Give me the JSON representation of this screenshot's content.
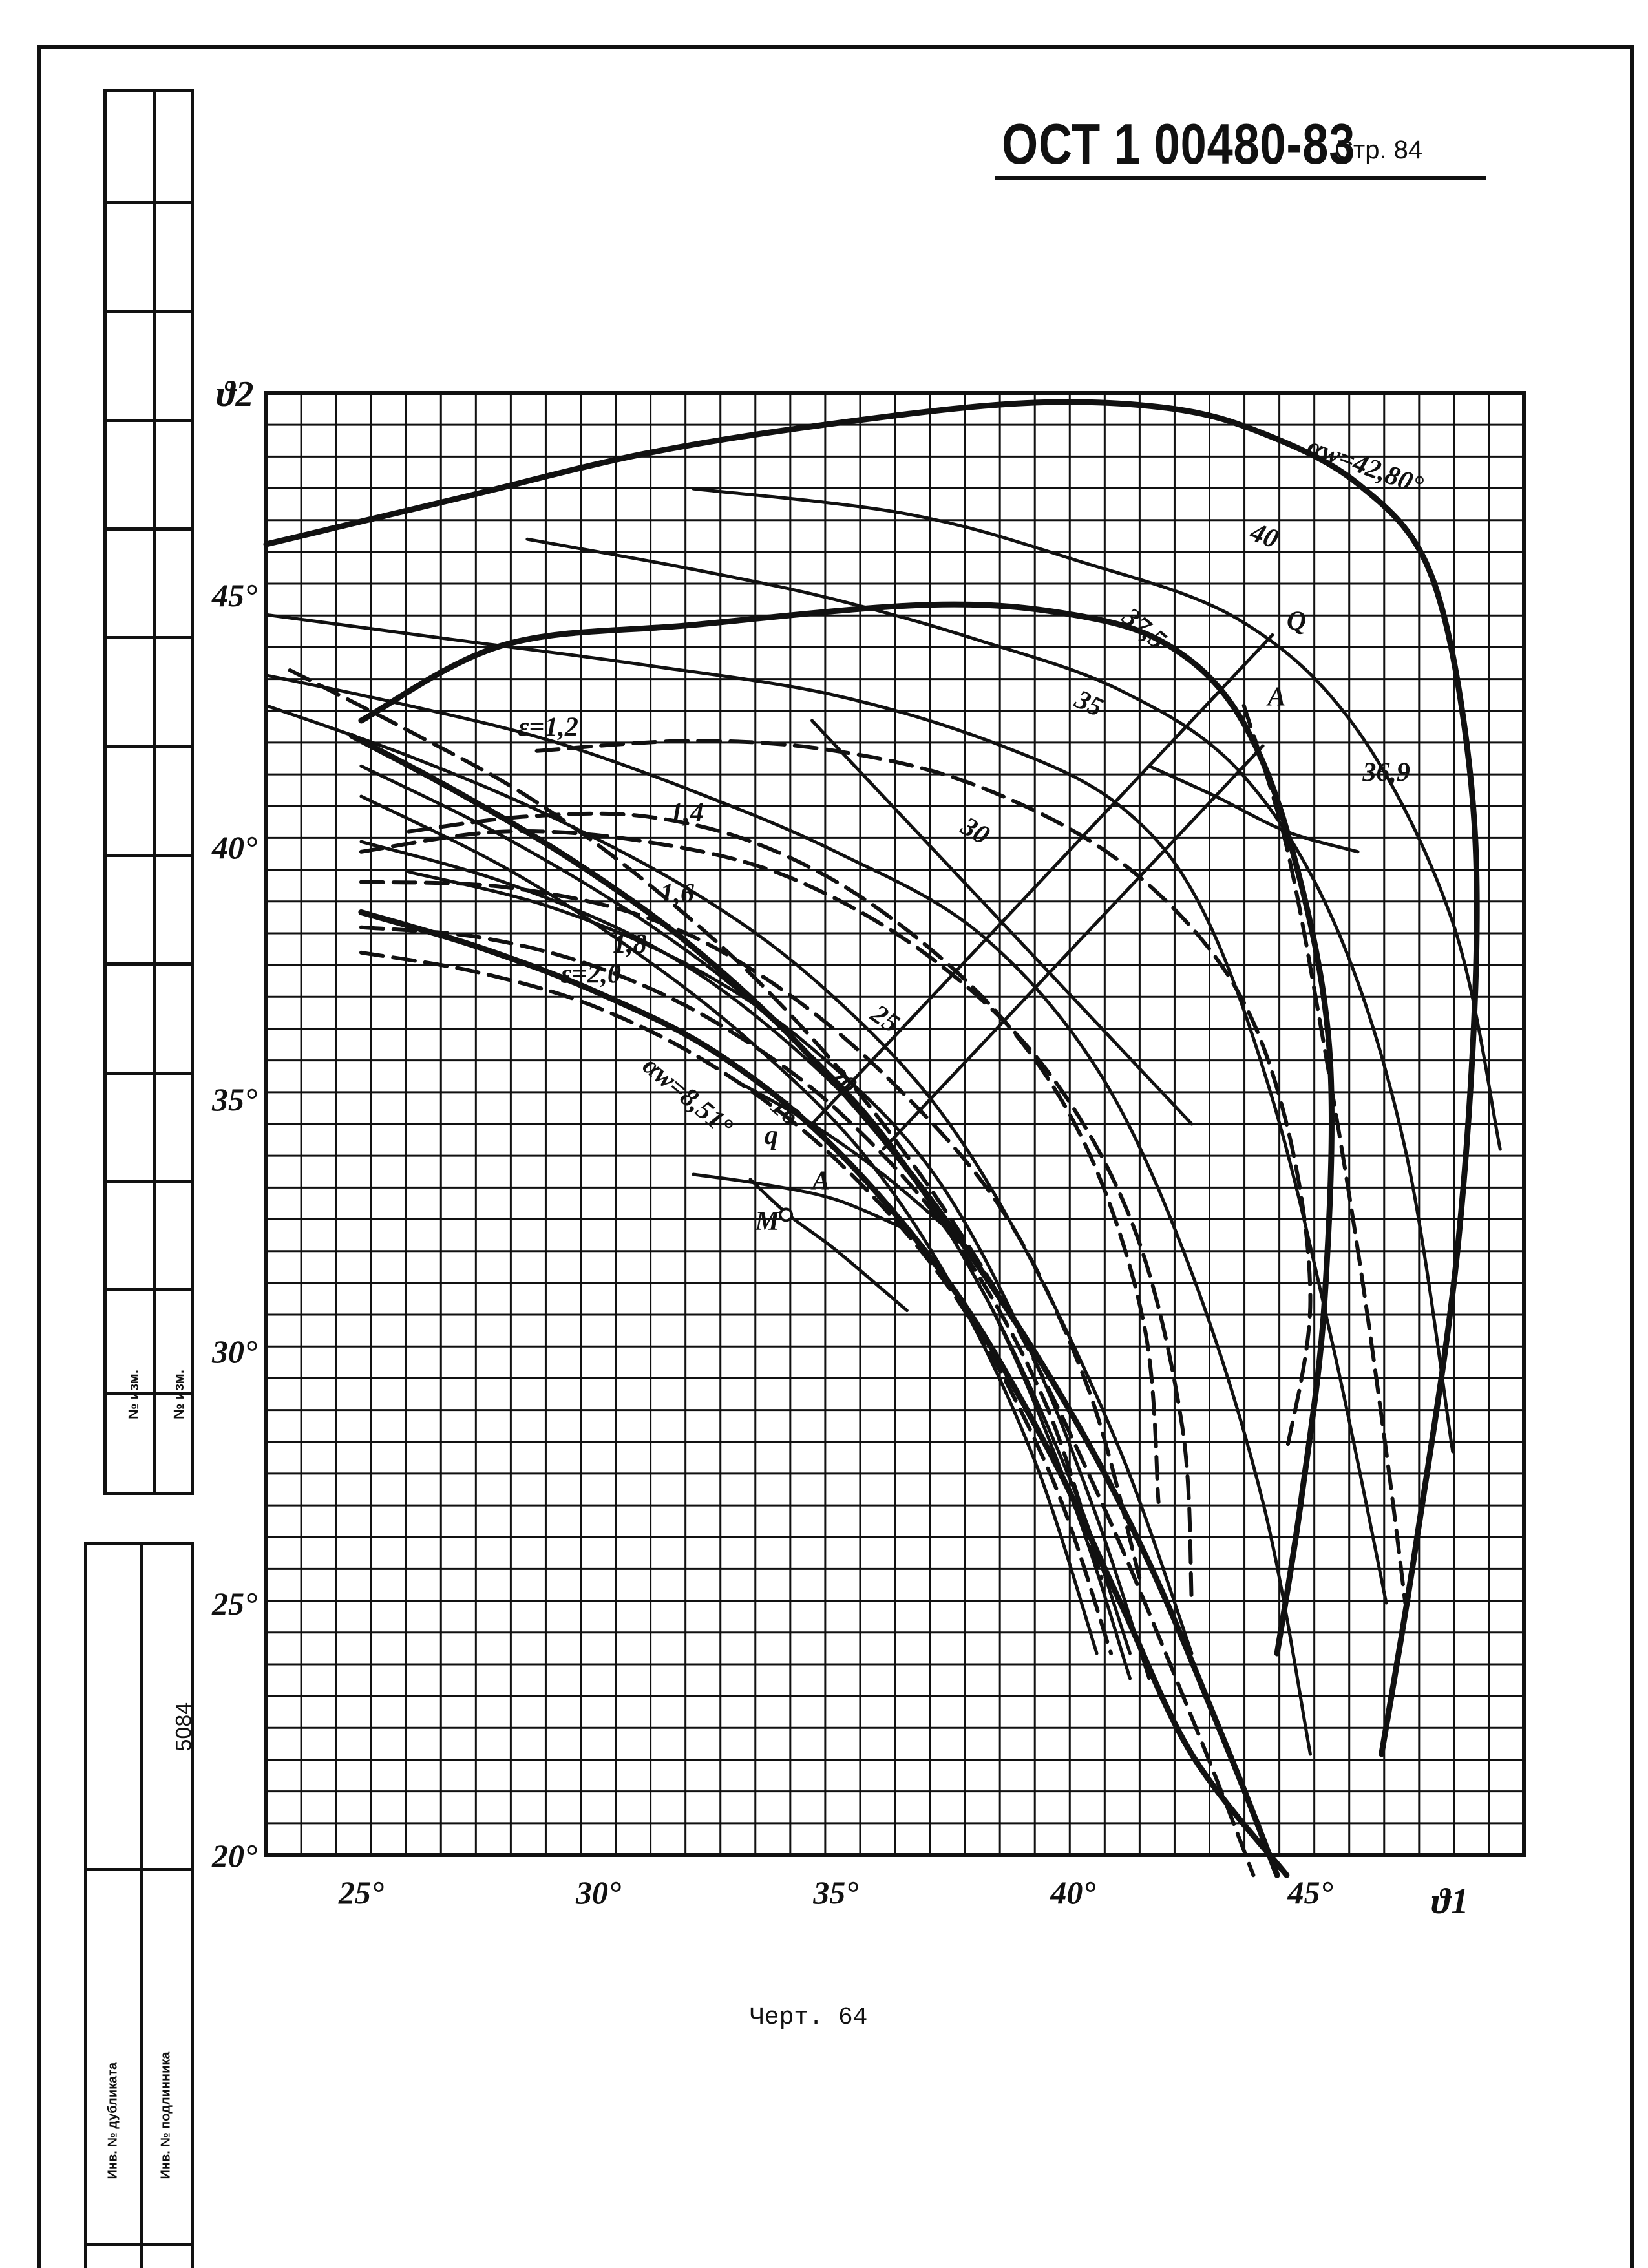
{
  "header": {
    "doc_number": "ОСТ 1 00480-83",
    "page_label": "Стр. 84"
  },
  "caption": "Черт. 64",
  "side_block": {
    "inventory_label_1": "№ изм.",
    "inventory_label_2": "№ изм.",
    "inventory_number": "5084",
    "original_label": "Инв. № дубликата",
    "copy_label": "Инв. № подлинника"
  },
  "chart_data": {
    "type": "line",
    "title": "",
    "xlabel": "ϑ1",
    "ylabel": "ϑ2",
    "xlim": [
      23,
      49.5
    ],
    "ylim": [
      20,
      49
    ],
    "x_ticks": [
      {
        "value": 25,
        "label": "25°"
      },
      {
        "value": 30,
        "label": "30°"
      },
      {
        "value": 35,
        "label": "35°"
      },
      {
        "value": 40,
        "label": "40°"
      },
      {
        "value": 45,
        "label": "45°"
      }
    ],
    "y_ticks": [
      {
        "value": 20,
        "label": "20°"
      },
      {
        "value": 25,
        "label": "25°"
      },
      {
        "value": 30,
        "label": "30°"
      },
      {
        "value": 35,
        "label": "35°"
      },
      {
        "value": 40,
        "label": "40°"
      },
      {
        "value": 45,
        "label": "45°"
      }
    ],
    "grid": true,
    "series": [
      {
        "name": "αw=42,80°",
        "style": "bold",
        "label_at": [
          44.9,
          47.8
        ],
        "label_rotate": 20,
        "points": [
          [
            23,
            46
          ],
          [
            27,
            46.9
          ],
          [
            31,
            47.8
          ],
          [
            35,
            48.4
          ],
          [
            39,
            48.8
          ],
          [
            42,
            48.7
          ],
          [
            44,
            48.2
          ],
          [
            46,
            47.2
          ],
          [
            47.5,
            45.5
          ],
          [
            48.3,
            42
          ],
          [
            48.5,
            38
          ],
          [
            48.1,
            32
          ],
          [
            47.2,
            26
          ],
          [
            46.5,
            22
          ]
        ]
      },
      {
        "name": "40",
        "style": "solid",
        "label_at": [
          43.7,
          46.1
        ],
        "label_rotate": 20,
        "points": [
          [
            32,
            47.1
          ],
          [
            36.5,
            46.6
          ],
          [
            40,
            45.7
          ],
          [
            43.5,
            44.5
          ],
          [
            46,
            42.3
          ],
          [
            48,
            38.5
          ],
          [
            49,
            34
          ]
        ]
      },
      {
        "name": "37,5",
        "style": "solid",
        "label_at": [
          41,
          44.5
        ],
        "label_rotate": 40,
        "points": [
          [
            28.5,
            46.1
          ],
          [
            32,
            45.5
          ],
          [
            35,
            44.9
          ],
          [
            38,
            44.1
          ],
          [
            41,
            43.1
          ],
          [
            43.5,
            41.5
          ],
          [
            45.5,
            38.5
          ],
          [
            47,
            34
          ],
          [
            48,
            28
          ]
        ]
      },
      {
        "name": "35",
        "style": "solid",
        "label_at": [
          40,
          42.8
        ],
        "label_rotate": 25,
        "points": [
          [
            23,
            44.6
          ],
          [
            27,
            44.1
          ],
          [
            31,
            43.6
          ],
          [
            35,
            43
          ],
          [
            38.5,
            42
          ],
          [
            41,
            40.8
          ],
          [
            42.7,
            38.8
          ],
          [
            44.2,
            35
          ],
          [
            45.5,
            30
          ],
          [
            46.6,
            25
          ]
        ]
      },
      {
        "name": "30",
        "style": "solid",
        "label_at": [
          37.6,
          40.3
        ],
        "label_rotate": 30,
        "points": [
          [
            23,
            43.4
          ],
          [
            26,
            42.8
          ],
          [
            29,
            42.1
          ],
          [
            32,
            41.1
          ],
          [
            35,
            39.9
          ],
          [
            38,
            38.3
          ],
          [
            40.5,
            35.6
          ],
          [
            42.4,
            31.8
          ],
          [
            44,
            27
          ],
          [
            45,
            22
          ]
        ]
      },
      {
        "name": "25",
        "style": "solid",
        "label_at": [
          35.7,
          36.6
        ],
        "label_rotate": 35,
        "points": [
          [
            23,
            42.8
          ],
          [
            26,
            41.8
          ],
          [
            29,
            40.6
          ],
          [
            32,
            39.1
          ],
          [
            34.5,
            37.4
          ],
          [
            37,
            35
          ],
          [
            39,
            32
          ],
          [
            41,
            28
          ],
          [
            42.5,
            24
          ]
        ]
      },
      {
        "name": "20",
        "style": "solid",
        "label_at": [
          34.8,
          35.4
        ],
        "label_rotate": 40,
        "points": [
          [
            25,
            41.6
          ],
          [
            28,
            40.2
          ],
          [
            31,
            38.5
          ],
          [
            33.5,
            36.7
          ],
          [
            36,
            34.3
          ],
          [
            38.2,
            31
          ],
          [
            40,
            27.3
          ],
          [
            41.2,
            24
          ]
        ]
      },
      {
        "name": "16",
        "style": "solid",
        "label_at": [
          33.6,
          34.8
        ],
        "label_rotate": 40,
        "points": [
          [
            25,
            41
          ],
          [
            28,
            39.6
          ],
          [
            30.5,
            38.1
          ],
          [
            33,
            36.3
          ],
          [
            35.5,
            34
          ],
          [
            37.5,
            31.2
          ],
          [
            39.2,
            27.8
          ],
          [
            40.5,
            24
          ]
        ]
      },
      {
        "name": "αw=8,51°",
        "style": "bold",
        "label_at": [
          30.9,
          35.6
        ],
        "label_rotate": 40,
        "points": [
          [
            25,
            38.7
          ],
          [
            27.5,
            38
          ],
          [
            30,
            37.1
          ],
          [
            32.5,
            35.9
          ],
          [
            35,
            34
          ],
          [
            37.5,
            31.2
          ],
          [
            39.5,
            28
          ],
          [
            41,
            25
          ],
          [
            42.5,
            22
          ],
          [
            44.5,
            19.6
          ]
        ]
      },
      {
        "name": "",
        "style": "bold",
        "points": [
          [
            24.8,
            42.2
          ],
          [
            27,
            41.1
          ],
          [
            29.5,
            39.7
          ],
          [
            32,
            38
          ],
          [
            34.5,
            35.8
          ],
          [
            37,
            33
          ],
          [
            39.5,
            29.5
          ],
          [
            41.5,
            26
          ],
          [
            43.3,
            22
          ],
          [
            44.3,
            19.6
          ]
        ]
      },
      {
        "name": "",
        "style": "bold",
        "points": [
          [
            25,
            42.5
          ],
          [
            28,
            44
          ],
          [
            32,
            44.4
          ],
          [
            37,
            44.8
          ],
          [
            40,
            44.6
          ],
          [
            42,
            44
          ],
          [
            43.5,
            42.6
          ],
          [
            44.6,
            40
          ],
          [
            45.4,
            36
          ],
          [
            45.3,
            31
          ],
          [
            44.8,
            27
          ],
          [
            44.3,
            24
          ]
        ]
      },
      {
        "name": "",
        "style": "solid",
        "points": [
          [
            26,
            39.5
          ],
          [
            29,
            38.8
          ],
          [
            32,
            37.6
          ],
          [
            34.5,
            36
          ],
          [
            37,
            33.6
          ],
          [
            39,
            30.2
          ],
          [
            40.5,
            26.7
          ],
          [
            41.6,
            23.5
          ]
        ]
      },
      {
        "name": "",
        "style": "solid",
        "points": [
          [
            25,
            40.1
          ],
          [
            28,
            39.3
          ],
          [
            31,
            38.1
          ],
          [
            33.5,
            36.5
          ],
          [
            36,
            34.2
          ],
          [
            38.2,
            31
          ],
          [
            40,
            27
          ],
          [
            41.2,
            23.5
          ]
        ]
      },
      {
        "name": "36,9",
        "style": "solid",
        "label_at": [
          46.1,
          41.3
        ],
        "label_rotate": 0,
        "points": [
          [
            41.6,
            41.6
          ],
          [
            43,
            41
          ],
          [
            44.5,
            40.3
          ],
          [
            46,
            39.9
          ]
        ]
      },
      {
        "name": "ε=1,2",
        "style": "dashed",
        "label_at": [
          28.3,
          42.2
        ],
        "label_rotate": 0,
        "points": [
          [
            28.7,
            41.9
          ],
          [
            32,
            42.1
          ],
          [
            35,
            41.9
          ],
          [
            38,
            41.2
          ],
          [
            41,
            39.7
          ],
          [
            43.3,
            37.4
          ],
          [
            44.5,
            34.5
          ],
          [
            45,
            31
          ],
          [
            44.5,
            28
          ]
        ]
      },
      {
        "name": "1,4",
        "style": "dashed",
        "label_at": [
          31.5,
          40.5
        ],
        "label_rotate": 0,
        "points": [
          [
            25,
            39.9
          ],
          [
            28,
            40.3
          ],
          [
            31,
            40.1
          ],
          [
            34,
            39.4
          ],
          [
            37,
            37.8
          ],
          [
            39.5,
            35.5
          ],
          [
            41.3,
            32.4
          ],
          [
            42.3,
            28.5
          ],
          [
            42.5,
            25
          ]
        ]
      },
      {
        "name": "1,6",
        "style": "dashed",
        "label_at": [
          31.3,
          38.9
        ],
        "label_rotate": 0,
        "points": [
          [
            25,
            39.3
          ],
          [
            28,
            39.2
          ],
          [
            31,
            38.6
          ],
          [
            33.5,
            37.4
          ],
          [
            36,
            35.5
          ],
          [
            38.5,
            32.8
          ],
          [
            40.3,
            29.3
          ],
          [
            41.4,
            25.5
          ]
        ]
      },
      {
        "name": "1,8",
        "style": "dashed",
        "label_at": [
          30.3,
          37.9
        ],
        "label_rotate": 0,
        "points": [
          [
            25,
            38.4
          ],
          [
            27.5,
            38.2
          ],
          [
            30,
            37.6
          ],
          [
            32.5,
            36.5
          ],
          [
            35,
            34.8
          ],
          [
            37.5,
            32.2
          ],
          [
            39.4,
            29
          ],
          [
            40.6,
            25.5
          ]
        ]
      },
      {
        "name": "ε=2,0",
        "style": "dashed",
        "label_at": [
          29.2,
          37.3
        ],
        "label_rotate": 0,
        "points": [
          [
            25,
            37.9
          ],
          [
            27.5,
            37.5
          ],
          [
            30,
            36.8
          ],
          [
            32.5,
            35.6
          ],
          [
            35,
            33.8
          ],
          [
            37.5,
            31.1
          ],
          [
            39.5,
            27.6
          ],
          [
            40.8,
            24
          ]
        ]
      },
      {
        "name": "",
        "style": "dashed",
        "points": [
          [
            26,
            40.3
          ],
          [
            28.5,
            40.6
          ],
          [
            31,
            40.6
          ],
          [
            33.5,
            40
          ],
          [
            36,
            38.7
          ],
          [
            38.5,
            36.6
          ],
          [
            40.3,
            34
          ],
          [
            41.5,
            30.5
          ],
          [
            41.8,
            27
          ]
        ]
      },
      {
        "name": "",
        "style": "dashed",
        "points": [
          [
            23.5,
            43.5
          ],
          [
            26,
            42.3
          ],
          [
            28.5,
            41
          ],
          [
            31,
            39.3
          ],
          [
            33.5,
            37.2
          ],
          [
            36,
            34.5
          ],
          [
            38.5,
            31
          ],
          [
            40.6,
            27
          ],
          [
            42.6,
            22.5
          ],
          [
            43.8,
            19.6
          ]
        ]
      },
      {
        "name": "",
        "style": "dashed",
        "points": [
          [
            43.6,
            42.8
          ],
          [
            44.5,
            40
          ],
          [
            45.3,
            36
          ],
          [
            46,
            32
          ],
          [
            46.6,
            28
          ],
          [
            47,
            25
          ]
        ]
      },
      {
        "name": "Q",
        "style": "solid",
        "label_at": [
          44.5,
          44.3
        ],
        "label_rotate": 0,
        "points": [
          [
            34.5,
            34.5
          ],
          [
            36.5,
            36.5
          ],
          [
            38.5,
            38.5
          ],
          [
            40.5,
            40.5
          ],
          [
            42.5,
            42.5
          ],
          [
            44.2,
            44.2
          ]
        ]
      },
      {
        "name": "A",
        "style": "solid",
        "label_at": [
          44.1,
          42.8
        ],
        "label_rotate": 0,
        "points": [
          [
            36,
            34
          ],
          [
            38,
            36
          ],
          [
            40,
            38
          ],
          [
            42,
            40
          ],
          [
            44,
            42
          ]
        ]
      },
      {
        "name": "",
        "style": "solid",
        "points": [
          [
            34.5,
            42.5
          ],
          [
            36.5,
            40.5
          ],
          [
            38.5,
            38.5
          ],
          [
            40.5,
            36.5
          ],
          [
            42.5,
            34.5
          ]
        ]
      },
      {
        "name": "q",
        "style": "solid",
        "label_at": [
          33.5,
          34.1
        ],
        "label_rotate": 0,
        "points": [
          [
            33,
            35.3
          ],
          [
            34.5,
            34.5
          ],
          [
            36,
            33.5
          ],
          [
            37.5,
            32.3
          ]
        ]
      },
      {
        "name": "A",
        "style": "solid",
        "label_at": [
          34.5,
          33.2
        ],
        "label_rotate": 0,
        "points": [
          [
            32,
            33.5
          ],
          [
            33.5,
            33.3
          ],
          [
            35,
            33
          ],
          [
            36.5,
            32.4
          ]
        ]
      },
      {
        "name": "M",
        "style": "solid",
        "label_at": [
          33.3,
          32.4
        ],
        "label_rotate": 0,
        "points": [
          [
            33.2,
            33.4
          ],
          [
            34,
            32.7
          ],
          [
            35,
            32
          ],
          [
            36.5,
            30.8
          ]
        ]
      }
    ],
    "points": [
      {
        "name": "M",
        "x": 33.95,
        "y": 32.7
      }
    ]
  }
}
